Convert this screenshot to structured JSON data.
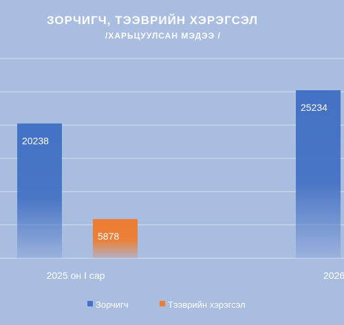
{
  "chart_data": {
    "type": "bar",
    "title": "ЗОРЧИГЧ,  ТЭЭВРИЙН ХЭРЭГСЭЛ",
    "subtitle": "/ХАРЬЦУУЛСАН МЭДЭЭ /",
    "categories": [
      "2025 он I сар",
      "2026"
    ],
    "series": [
      {
        "name": "Зорчигч",
        "values": [
          20238,
          25234
        ],
        "color": "#4472c4"
      },
      {
        "name": "Тээврийн хэрэгсэл",
        "values": [
          5878,
          null
        ],
        "color": "#ed7d31"
      }
    ],
    "ylim": [
      0,
      30000
    ],
    "grid": true,
    "legend": "bottom"
  },
  "colors": {
    "background": "#a9bde1",
    "gridline": "#d6e0f0",
    "text": "#ffffff"
  }
}
